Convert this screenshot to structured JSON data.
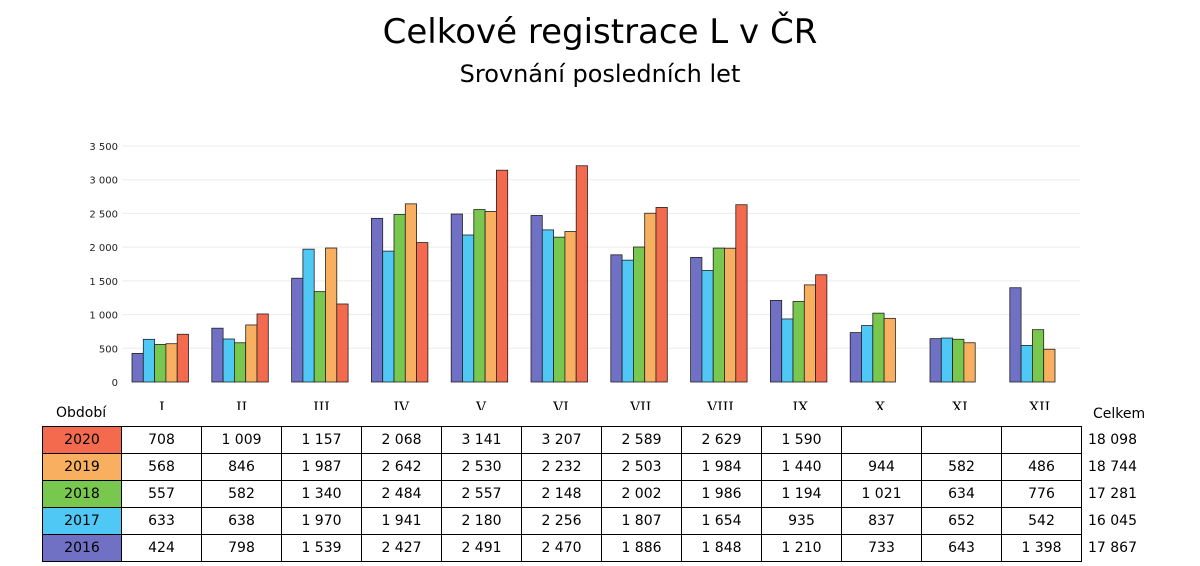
{
  "title": "Celkové registrace L v ČR",
  "subtitle": "Srovnání posledních let",
  "table": {
    "period_label": "Období",
    "total_label": "Celkem"
  },
  "chart_data": {
    "type": "bar",
    "categories": [
      "I",
      "II",
      "III",
      "IV",
      "V",
      "VI",
      "VII",
      "VIII",
      "IX",
      "X",
      "XI",
      "XII"
    ],
    "ylim": [
      0,
      3500
    ],
    "yticks": [
      "0",
      "500",
      "1 000",
      "1 500",
      "2 000",
      "2 500",
      "3 000",
      "3 500"
    ],
    "grid": true,
    "series": [
      {
        "name": "2016",
        "color": "#7070c4",
        "values": [
          424,
          798,
          1539,
          2427,
          2491,
          2470,
          1886,
          1848,
          1210,
          733,
          643,
          1398
        ],
        "labels": [
          "424",
          "798",
          "1 539",
          "2 427",
          "2 491",
          "2 470",
          "1 886",
          "1 848",
          "1 210",
          "733",
          "643",
          "1 398"
        ],
        "total": "17 867"
      },
      {
        "name": "2017",
        "color": "#4fc8f5",
        "values": [
          633,
          638,
          1970,
          1941,
          2180,
          2256,
          1807,
          1654,
          935,
          837,
          652,
          542
        ],
        "labels": [
          "633",
          "638",
          "1 970",
          "1 941",
          "2 180",
          "2 256",
          "1 807",
          "1 654",
          "935",
          "837",
          "652",
          "542"
        ],
        "total": "16 045"
      },
      {
        "name": "2018",
        "color": "#78c850",
        "values": [
          557,
          582,
          1340,
          2484,
          2557,
          2148,
          2002,
          1986,
          1194,
          1021,
          634,
          776
        ],
        "labels": [
          "557",
          "582",
          "1 340",
          "2 484",
          "2 557",
          "2 148",
          "2 002",
          "1 986",
          "1 194",
          "1 021",
          "634",
          "776"
        ],
        "total": "17 281"
      },
      {
        "name": "2019",
        "color": "#f8b060",
        "values": [
          568,
          846,
          1987,
          2642,
          2530,
          2232,
          2503,
          1984,
          1440,
          944,
          582,
          486
        ],
        "labels": [
          "568",
          "846",
          "1 987",
          "2 642",
          "2 530",
          "2 232",
          "2 503",
          "1 984",
          "1 440",
          "944",
          "582",
          "486"
        ],
        "total": "18 744"
      },
      {
        "name": "2020",
        "color": "#f46a4e",
        "values": [
          708,
          1009,
          1157,
          2068,
          3141,
          3207,
          2589,
          2629,
          1590,
          null,
          null,
          null
        ],
        "labels": [
          "708",
          "1 009",
          "1 157",
          "2 068",
          "3 141",
          "3 207",
          "2 589",
          "2 629",
          "1 590",
          "",
          "",
          ""
        ],
        "total": "18 098"
      }
    ]
  }
}
